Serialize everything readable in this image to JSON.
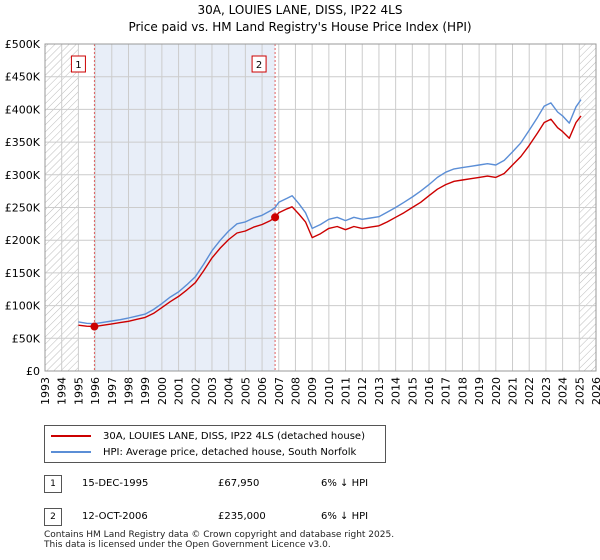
{
  "chart_data": {
    "type": "line",
    "title": "30A, LOUIES LANE, DISS, IP22 4LS",
    "subtitle": "Price paid vs. HM Land Registry's House Price Index (HPI)",
    "xlim": [
      1993,
      2026
    ],
    "ylim": [
      0,
      500000
    ],
    "x_ticks": [
      "1993",
      "1994",
      "1995",
      "1996",
      "1997",
      "1998",
      "1999",
      "2000",
      "2001",
      "2002",
      "2003",
      "2004",
      "2005",
      "2006",
      "2007",
      "2008",
      "2009",
      "2010",
      "2011",
      "2012",
      "2013",
      "2014",
      "2015",
      "2016",
      "2017",
      "2018",
      "2019",
      "2020",
      "2021",
      "2022",
      "2023",
      "2024",
      "2025",
      "2026"
    ],
    "y_ticks": [
      {
        "value": 0,
        "label": "£0"
      },
      {
        "value": 50000,
        "label": "£50K"
      },
      {
        "value": 100000,
        "label": "£100K"
      },
      {
        "value": 150000,
        "label": "£150K"
      },
      {
        "value": 200000,
        "label": "£200K"
      },
      {
        "value": 250000,
        "label": "£250K"
      },
      {
        "value": 300000,
        "label": "£300K"
      },
      {
        "value": 350000,
        "label": "£350K"
      },
      {
        "value": 400000,
        "label": "£400K"
      },
      {
        "value": 450000,
        "label": "£450K"
      },
      {
        "value": 500000,
        "label": "£500K"
      }
    ],
    "hatched_ranges": [
      [
        1993,
        1995.0
      ],
      [
        2025.0,
        2026
      ]
    ],
    "shaded_range": [
      1995.96,
      2006.78
    ],
    "series": [
      {
        "name": "30A, LOUIES LANE, DISS, IP22 4LS (detached house)",
        "color": "#cc0000",
        "x": [
          1995.0,
          1995.5,
          1995.96,
          1996.5,
          1997.0,
          1997.5,
          1998.0,
          1998.5,
          1999.0,
          1999.5,
          2000.0,
          2000.5,
          2001.0,
          2001.5,
          2002.0,
          2002.5,
          2003.0,
          2003.5,
          2004.0,
          2004.5,
          2005.0,
          2005.5,
          2006.0,
          2006.5,
          2006.78,
          2007.0,
          2007.5,
          2007.8,
          2008.2,
          2008.6,
          2009.0,
          2009.5,
          2010.0,
          2010.5,
          2011.0,
          2011.5,
          2012.0,
          2012.5,
          2013.0,
          2013.5,
          2014.0,
          2014.5,
          2015.0,
          2015.5,
          2016.0,
          2016.5,
          2017.0,
          2017.5,
          2018.0,
          2018.5,
          2019.0,
          2019.5,
          2020.0,
          2020.5,
          2021.0,
          2021.5,
          2022.0,
          2022.5,
          2022.9,
          2023.3,
          2023.7,
          2024.0,
          2024.4,
          2024.8,
          2025.1
        ],
        "values": [
          70000,
          68500,
          67950,
          70000,
          72000,
          74000,
          76000,
          79000,
          82000,
          88000,
          97000,
          106000,
          114000,
          124000,
          135000,
          153000,
          173000,
          188000,
          201000,
          211000,
          214000,
          220000,
          224000,
          230000,
          235000,
          242000,
          248000,
          251000,
          240000,
          228000,
          204000,
          210000,
          218000,
          221000,
          216000,
          221000,
          218000,
          220000,
          222000,
          228000,
          235000,
          242000,
          250000,
          258000,
          268000,
          278000,
          285000,
          290000,
          292000,
          294000,
          296000,
          298000,
          296000,
          302000,
          315000,
          328000,
          345000,
          364000,
          380000,
          385000,
          372000,
          366000,
          356000,
          380000,
          390000
        ]
      },
      {
        "name": "HPI: Average price, detached house, South Norfolk",
        "color": "#5b8ed6",
        "x": [
          1995.0,
          1995.5,
          1995.96,
          1996.5,
          1997.0,
          1997.5,
          1998.0,
          1998.5,
          1999.0,
          1999.5,
          2000.0,
          2000.5,
          2001.0,
          2001.5,
          2002.0,
          2002.5,
          2003.0,
          2003.5,
          2004.0,
          2004.5,
          2005.0,
          2005.5,
          2006.0,
          2006.5,
          2006.78,
          2007.0,
          2007.5,
          2007.8,
          2008.2,
          2008.6,
          2009.0,
          2009.5,
          2010.0,
          2010.5,
          2011.0,
          2011.5,
          2012.0,
          2012.5,
          2013.0,
          2013.5,
          2014.0,
          2014.5,
          2015.0,
          2015.5,
          2016.0,
          2016.5,
          2017.0,
          2017.5,
          2018.0,
          2018.5,
          2019.0,
          2019.5,
          2020.0,
          2020.5,
          2021.0,
          2021.5,
          2022.0,
          2022.5,
          2022.9,
          2023.3,
          2023.7,
          2024.0,
          2024.4,
          2024.8,
          2025.1
        ],
        "values": [
          75000,
          73000,
          72300,
          74500,
          76500,
          78500,
          81000,
          84000,
          87000,
          94000,
          103000,
          113000,
          121000,
          132000,
          144000,
          163000,
          184000,
          200000,
          214000,
          225000,
          228000,
          234000,
          238000,
          245000,
          250000,
          258000,
          264000,
          268000,
          256000,
          242000,
          218000,
          224000,
          232000,
          235000,
          230000,
          235000,
          232000,
          234000,
          236000,
          243000,
          250000,
          258000,
          266000,
          275000,
          285000,
          296000,
          304000,
          309000,
          311000,
          313000,
          315000,
          317000,
          315000,
          322000,
          335000,
          349000,
          368000,
          388000,
          405000,
          410000,
          396000,
          390000,
          379000,
          404000,
          415000
        ]
      }
    ],
    "sales": [
      {
        "marker": "1",
        "x": 1995.96,
        "price": 67950
      },
      {
        "marker": "2",
        "x": 2006.78,
        "price": 235000
      }
    ]
  },
  "legend": {
    "property_label": "30A, LOUIES LANE, DISS, IP22 4LS (detached house)",
    "hpi_label": "HPI: Average price, detached house, South Norfolk"
  },
  "transactions": [
    {
      "num": "1",
      "date": "15-DEC-1995",
      "price": "£67,950",
      "pct": "6% ↓ HPI"
    },
    {
      "num": "2",
      "date": "12-OCT-2006",
      "price": "£235,000",
      "pct": "6% ↓ HPI"
    }
  ],
  "footer": {
    "line1": "Contains HM Land Registry data © Crown copyright and database right 2025.",
    "line2": "This data is licensed under the Open Government Licence v3.0."
  },
  "colors": {
    "property": "#cc0000",
    "hpi": "#5b8ed6",
    "shade": "#e8eef8",
    "grid": "#cccccc"
  }
}
